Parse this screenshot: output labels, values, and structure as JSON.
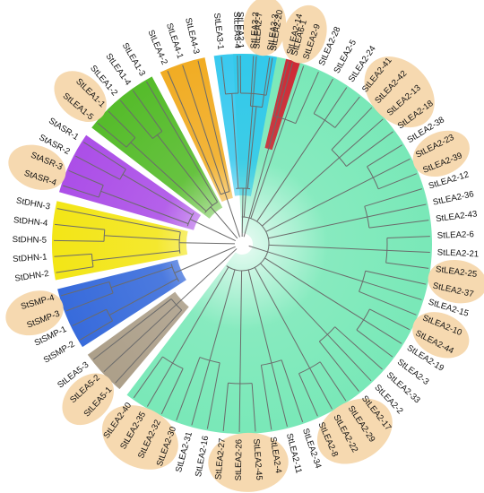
{
  "colors": {
    "LEA_2": "#72e7b4",
    "LEA_6": "#d3202f",
    "LEA_3": "#2fc7ee",
    "LEA_4": "#f0a818",
    "LEA_1": "#4cb81f",
    "ASR": "#a745e6",
    "DHN": "#f2e40a",
    "SMP": "#2d63d9",
    "LEA_5": "#a89a83",
    "highlight": "#f6d9b0",
    "branch": "#6b6b6b"
  },
  "tree": {
    "clades": [
      {
        "name": "LEA_2",
        "color_key": "LEA_2",
        "leaves": [
          {
            "label": "StLEA2-1",
            "highlight": false
          },
          {
            "label": "StLEA2-7",
            "highlight": false
          },
          {
            "label": "StLEA2-20",
            "highlight": false
          },
          {
            "label": "StLEA2-14",
            "highlight": true
          },
          {
            "label": "StLEA2-9",
            "highlight": true
          },
          {
            "label": "StLEA2-28",
            "highlight": false
          },
          {
            "label": "StLEA2-5",
            "highlight": false
          },
          {
            "label": "StLEA2-24",
            "highlight": false
          },
          {
            "label": "StLEA2-41",
            "highlight": true
          },
          {
            "label": "StLEA2-42",
            "highlight": true
          },
          {
            "label": "StLEA2-13",
            "highlight": true
          },
          {
            "label": "StLEA2-18",
            "highlight": true
          },
          {
            "label": "StLEA2-38",
            "highlight": false
          },
          {
            "label": "StLEA2-23",
            "highlight": true
          },
          {
            "label": "StLEA2-39",
            "highlight": true
          },
          {
            "label": "StLEA2-12",
            "highlight": false
          },
          {
            "label": "StLEA2-36",
            "highlight": false
          },
          {
            "label": "StLEA2-43",
            "highlight": false
          },
          {
            "label": "StLEA2-6",
            "highlight": false
          },
          {
            "label": "StLEA2-21",
            "highlight": false
          },
          {
            "label": "StLEA2-25",
            "highlight": true
          },
          {
            "label": "StLEA2-37",
            "highlight": true
          },
          {
            "label": "StLEA2-15",
            "highlight": false
          },
          {
            "label": "StLEA2-10",
            "highlight": true
          },
          {
            "label": "StLEA2-44",
            "highlight": true
          },
          {
            "label": "StLEA2-19",
            "highlight": false
          },
          {
            "label": "StLEA2-3",
            "highlight": false
          },
          {
            "label": "StLEA2-33",
            "highlight": false
          },
          {
            "label": "StLEA2-2",
            "highlight": false
          },
          {
            "label": "StLEA2-17",
            "highlight": true
          },
          {
            "label": "StLEA2-29",
            "highlight": true
          },
          {
            "label": "StLEA2-22",
            "highlight": true
          },
          {
            "label": "StLEA2-8",
            "highlight": true
          },
          {
            "label": "StLEA2-34",
            "highlight": false
          },
          {
            "label": "StLEA2-11",
            "highlight": false
          },
          {
            "label": "StLEA2-4",
            "highlight": true
          },
          {
            "label": "StLEA2-45",
            "highlight": true
          },
          {
            "label": "StLEA2-26",
            "highlight": true
          },
          {
            "label": "StLEA2-27",
            "highlight": true
          },
          {
            "label": "StLEA2-16",
            "highlight": false
          },
          {
            "label": "StLEA2-31",
            "highlight": false
          },
          {
            "label": "StLEA2-30",
            "highlight": true
          },
          {
            "label": "StLEA2-32",
            "highlight": true
          },
          {
            "label": "StLEA2-35",
            "highlight": true
          },
          {
            "label": "StLEA2-40",
            "highlight": true
          }
        ]
      },
      {
        "name": "LEA_5",
        "color_key": "LEA_5",
        "leaves": [
          {
            "label": "StLEA5-1",
            "highlight": true
          },
          {
            "label": "StLEA5-2",
            "highlight": true
          },
          {
            "label": "StLEA5-3",
            "highlight": false
          }
        ]
      },
      {
        "name": "SMP",
        "color_key": "SMP",
        "leaves": [
          {
            "label": "StSMP-2",
            "highlight": false
          },
          {
            "label": "StSMP-1",
            "highlight": false
          },
          {
            "label": "StSMP-3",
            "highlight": true
          },
          {
            "label": "StSMP-4",
            "highlight": true
          }
        ]
      },
      {
        "name": "DHN",
        "color_key": "DHN",
        "leaves": [
          {
            "label": "StDHN-2",
            "highlight": false
          },
          {
            "label": "StDHN-1",
            "highlight": false
          },
          {
            "label": "StDHN-5",
            "highlight": false
          },
          {
            "label": "StDHN-4",
            "highlight": false
          },
          {
            "label": "StDHN-3",
            "highlight": false
          }
        ]
      },
      {
        "name": "ASR",
        "color_key": "ASR",
        "leaves": [
          {
            "label": "StASR-4",
            "highlight": true
          },
          {
            "label": "StASR-3",
            "highlight": true
          },
          {
            "label": "StASR-2",
            "highlight": false
          },
          {
            "label": "StASR-1",
            "highlight": false
          }
        ]
      },
      {
        "name": "LEA_1",
        "color_key": "LEA_1",
        "leaves": [
          {
            "label": "StLEA1-5",
            "highlight": true
          },
          {
            "label": "StLEA1-1",
            "highlight": true
          },
          {
            "label": "StLEA1-2",
            "highlight": false
          },
          {
            "label": "StLEA1-4",
            "highlight": false
          },
          {
            "label": "StLEA1-3",
            "highlight": false
          }
        ]
      },
      {
        "name": "LEA_4",
        "color_key": "LEA_4",
        "leaves": [
          {
            "label": "StLEA4-2",
            "highlight": false
          },
          {
            "label": "StLEA4-1",
            "highlight": false
          },
          {
            "label": "StLEA4-3",
            "highlight": false
          }
        ]
      },
      {
        "name": "LEA_3",
        "color_key": "LEA_3",
        "leaves": [
          {
            "label": "StLEA3-1",
            "highlight": false
          },
          {
            "label": "StLEA3-4",
            "highlight": false
          },
          {
            "label": "StLEA3-2",
            "highlight": true
          },
          {
            "label": "StLEA3-3",
            "highlight": true
          }
        ]
      },
      {
        "name": "LEA_6",
        "color_key": "LEA_6",
        "leaves": [
          {
            "label": "StLEA6-1",
            "highlight": false
          }
        ]
      }
    ]
  }
}
